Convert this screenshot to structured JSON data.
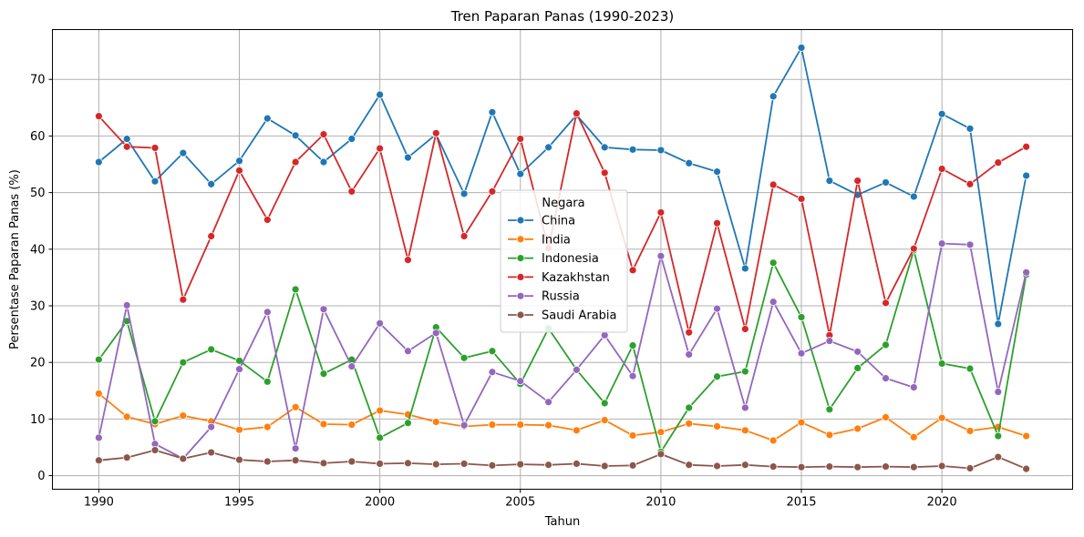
{
  "chart_data": {
    "type": "line",
    "title": "Tren Paparan Panas (1990-2023)",
    "xlabel": "Tahun",
    "ylabel": "Persentase Paparan Panas (%)",
    "xlim": [
      1987.85,
      1970.0
    ],
    "ylim": [
      -2.5,
      78.8
    ],
    "x_ticks": [
      1990,
      1995,
      2000,
      2005,
      2010,
      2015,
      2020
    ],
    "y_ticks": [
      0,
      10,
      20,
      30,
      40,
      50,
      60,
      70
    ],
    "grid": true,
    "legend": {
      "title": "Negara",
      "placement": "center"
    },
    "x": [
      1990,
      1991,
      1992,
      1993,
      1994,
      1995,
      1996,
      1997,
      1998,
      1999,
      2000,
      2001,
      2002,
      2003,
      2004,
      2005,
      2006,
      2007,
      2008,
      2009,
      2010,
      2011,
      2012,
      2013,
      2014,
      2015,
      2016,
      2017,
      2018,
      2019,
      2020,
      2021,
      2022,
      2023
    ],
    "series": [
      {
        "name": "China",
        "color": "#1f77b4",
        "values": [
          55.4,
          59.5,
          52.0,
          57.0,
          51.5,
          55.6,
          63.1,
          60.1,
          55.4,
          59.5,
          67.3,
          56.2,
          60.3,
          49.8,
          64.2,
          53.3,
          58.0,
          63.7,
          58.0,
          57.6,
          57.5,
          55.2,
          53.7,
          36.6,
          67.0,
          75.6,
          52.1,
          49.6,
          51.8,
          49.3,
          63.9,
          61.3,
          26.8,
          53.0
        ]
      },
      {
        "name": "India",
        "color": "#ff7f0e",
        "values": [
          14.5,
          10.4,
          9.1,
          10.6,
          9.6,
          8.1,
          8.6,
          12.1,
          9.1,
          9.0,
          11.5,
          10.8,
          9.5,
          8.7,
          9.0,
          9.0,
          8.9,
          8.0,
          9.8,
          7.1,
          7.7,
          9.2,
          8.7,
          8.0,
          6.2,
          9.4,
          7.2,
          8.3,
          10.3,
          6.8,
          10.2,
          7.9,
          8.6,
          7.0
        ]
      },
      {
        "name": "Indonesia",
        "color": "#2ca02c",
        "values": [
          20.5,
          27.3,
          9.6,
          20.0,
          22.3,
          20.3,
          16.6,
          32.9,
          18.0,
          20.5,
          6.7,
          9.3,
          26.2,
          20.8,
          22.0,
          16.2,
          26.0,
          18.7,
          12.8,
          23.0,
          4.2,
          12.0,
          17.5,
          18.4,
          37.6,
          28.0,
          11.7,
          19.0,
          23.1,
          39.8,
          19.8,
          18.9,
          7.0,
          35.5
        ]
      },
      {
        "name": "Kazakhstan",
        "color": "#d62728",
        "values": [
          63.5,
          58.1,
          57.9,
          31.1,
          42.3,
          53.9,
          45.2,
          55.4,
          60.3,
          50.2,
          57.8,
          38.1,
          60.5,
          42.3,
          50.2,
          59.5,
          40.2,
          64.0,
          53.5,
          36.3,
          46.5,
          25.3,
          44.6,
          25.9,
          51.4,
          48.9,
          24.8,
          52.1,
          30.5,
          40.1,
          54.2,
          51.5,
          55.3,
          58.1
        ]
      },
      {
        "name": "Russia",
        "color": "#9467bd",
        "values": [
          6.7,
          30.1,
          5.6,
          3.0,
          8.6,
          18.8,
          28.9,
          4.8,
          29.4,
          19.3,
          26.9,
          22.0,
          25.2,
          8.9,
          18.3,
          16.7,
          13.0,
          18.7,
          24.8,
          17.6,
          38.8,
          21.4,
          29.5,
          12.0,
          30.7,
          21.6,
          23.8,
          21.9,
          17.2,
          15.6,
          41.0,
          40.8,
          14.8,
          35.9
        ]
      },
      {
        "name": "Saudi Arabia",
        "color": "#8c564b",
        "values": [
          2.7,
          3.2,
          4.5,
          3.0,
          4.1,
          2.8,
          2.5,
          2.7,
          2.2,
          2.5,
          2.1,
          2.2,
          2.0,
          2.1,
          1.8,
          2.0,
          1.9,
          2.1,
          1.7,
          1.8,
          3.8,
          1.9,
          1.7,
          1.9,
          1.6,
          1.5,
          1.6,
          1.5,
          1.6,
          1.5,
          1.7,
          1.3,
          3.3,
          1.2
        ]
      }
    ]
  }
}
